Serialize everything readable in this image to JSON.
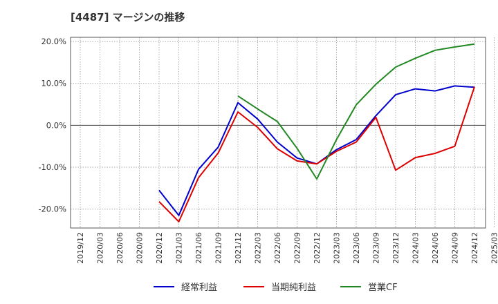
{
  "title": "[4487]  マージンの推移",
  "chart_data": {
    "type": "line",
    "title": "[4487]  マージンの推移",
    "xlabel": "",
    "ylabel": "",
    "x": [
      "2019/12",
      "2020/03",
      "2020/06",
      "2020/09",
      "2020/12",
      "2021/03",
      "2021/06",
      "2021/09",
      "2021/12",
      "2022/03",
      "2022/06",
      "2022/09",
      "2022/12",
      "2023/03",
      "2023/06",
      "2023/09",
      "2023/12",
      "2024/03",
      "2024/06",
      "2024/09",
      "2024/12",
      "2025/03"
    ],
    "yticks": [
      "20.0%",
      "10.0%",
      "0.0%",
      "-10.0%",
      "-20.0%"
    ],
    "ylim": [
      -24.5,
      21.0
    ],
    "grid": true,
    "legend_position": "bottom",
    "series": [
      {
        "name": "経常利益",
        "color": "#0000cc",
        "values": [
          null,
          null,
          null,
          null,
          -15.5,
          -21.5,
          -10.5,
          -5.2,
          5.4,
          1.5,
          -4.0,
          -7.8,
          -9.2,
          -5.8,
          -3.4,
          2.3,
          7.3,
          8.7,
          8.2,
          9.4,
          9.1,
          null
        ]
      },
      {
        "name": "当期純利益",
        "color": "#dd0000",
        "values": [
          null,
          null,
          null,
          null,
          -18.2,
          -23.0,
          -12.5,
          -6.6,
          3.2,
          -0.5,
          -5.6,
          -8.5,
          -9.2,
          -6.2,
          -4.0,
          1.9,
          -10.7,
          -7.7,
          -6.7,
          -5.0,
          9.2,
          null
        ]
      },
      {
        "name": "営業CF",
        "color": "#228822",
        "values": [
          null,
          null,
          null,
          null,
          null,
          null,
          null,
          null,
          7.0,
          3.9,
          0.9,
          -5.5,
          -12.8,
          -3.4,
          4.9,
          9.8,
          13.9,
          16.0,
          17.9,
          18.7,
          19.4,
          null
        ]
      }
    ]
  }
}
